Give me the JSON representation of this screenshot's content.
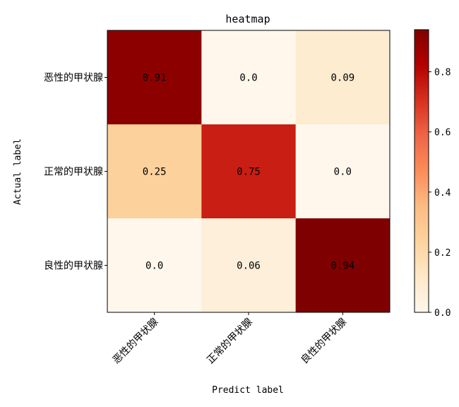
{
  "chart_data": {
    "type": "heatmap",
    "title": "heatmap",
    "xlabel": "Predict label",
    "ylabel": "Actual label",
    "x_categories": [
      "恶性的甲状腺",
      "正常的甲状腺",
      "良性的甲状腺"
    ],
    "y_categories": [
      "恶性的甲状腺",
      "正常的甲状腺",
      "良性的甲状腺"
    ],
    "values": [
      [
        0.91,
        0.0,
        0.09
      ],
      [
        0.25,
        0.75,
        0.0
      ],
      [
        0.0,
        0.06,
        0.94
      ]
    ],
    "labels": [
      [
        "0.91",
        "0.0",
        "0.09"
      ],
      [
        "0.25",
        "0.75",
        "0.0"
      ],
      [
        "0.0",
        "0.06",
        "0.94"
      ]
    ],
    "colorbar": {
      "range": [
        0,
        0.94
      ],
      "ticks": [
        0.0,
        0.2,
        0.4,
        0.6,
        0.8
      ],
      "tick_labels": [
        "0.0",
        "0.2",
        "0.4",
        "0.6",
        "0.8"
      ],
      "colormap": "OrRd"
    },
    "grid": false
  }
}
